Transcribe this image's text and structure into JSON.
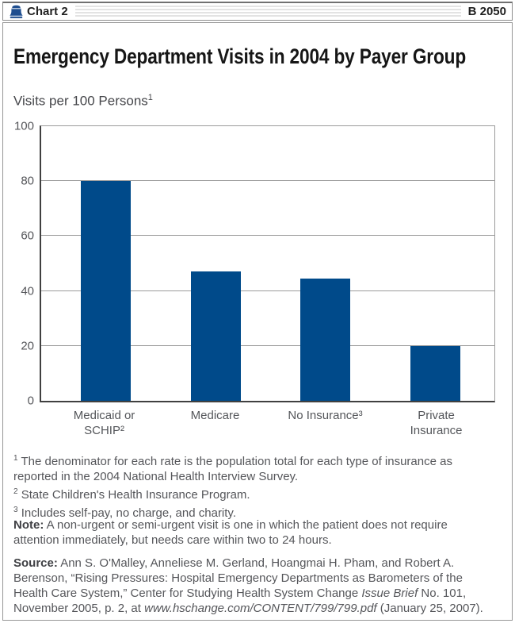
{
  "header": {
    "doc_label": "Chart 2",
    "doc_number": "B 2050"
  },
  "title": "Emergency Department Visits in 2004 by Payer Group",
  "axis_label": "Visits per 100 Persons",
  "axis_label_sup": "1",
  "chart_data": {
    "type": "bar",
    "categories": [
      "Medicaid or SCHIP",
      "Medicare",
      "No Insurance",
      "Private Insurance"
    ],
    "category_lines": [
      [
        "Medicaid or",
        "SCHIP²"
      ],
      [
        "Medicare"
      ],
      [
        "No Insurance³"
      ],
      [
        "Private",
        "Insurance"
      ]
    ],
    "values": [
      80,
      47,
      44.5,
      20
    ],
    "title": "Emergency Department Visits in 2004 by Payer Group",
    "xlabel": "",
    "ylabel": "Visits per 100 Persons¹",
    "ylim": [
      0,
      100
    ],
    "yticks": [
      0,
      20,
      40,
      60,
      80,
      100
    ],
    "grid": true,
    "legend": false,
    "bar_color": "#004a8a"
  },
  "footnotes": [
    {
      "sup": "1",
      "text": "The denominator for each rate is the population total for each type of insurance as reported in the 2004 National Health Interview Survey."
    },
    {
      "sup": "2",
      "text": "State Children's Health Insurance Program."
    },
    {
      "sup": "3",
      "text": "Includes self-pay, no charge, and charity."
    }
  ],
  "note": {
    "label": "Note:",
    "text": "A non-urgent or semi-urgent visit is one in which the patient does not require attention immediately, but needs care within two to 24 hours."
  },
  "source": {
    "label": "Source:",
    "segments": [
      {
        "text": "Ann S. O'Malley, Anneliese M. Gerland, Hoangmai H. Pham, and Robert A. Berenson, “Rising Pressures: Hospital Emergency Departments as Barometers of the Health Care System,” Center for Studying Health System Change ",
        "italic": false
      },
      {
        "text": "Issue Brief",
        "italic": true
      },
      {
        "text": " No. 101, November 2005, p. 2, at ",
        "italic": false
      },
      {
        "text": "www.hschange.com/CONTENT/799/799.pdf",
        "italic": true
      },
      {
        "text": " (January 25, 2007).",
        "italic": false
      }
    ]
  },
  "colors": {
    "bar": "#004a8a",
    "bell": "#1f4e8f",
    "grid": "#9b9b9b",
    "axis": "#404040",
    "text_gray": "#55565a"
  }
}
